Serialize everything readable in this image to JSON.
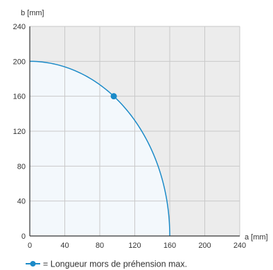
{
  "chart_data": {
    "type": "line",
    "xlabel": "a [mm]",
    "ylabel": "b [mm]",
    "xlim": [
      0,
      240
    ],
    "ylim": [
      0,
      240
    ],
    "xticks": [
      0,
      40,
      80,
      120,
      160,
      200,
      240
    ],
    "yticks": [
      0,
      40,
      80,
      120,
      160,
      200,
      240
    ],
    "grid": true,
    "series": [
      {
        "curve": "quarter-ellipse",
        "semi_axis_a": 160,
        "semi_axis_b": 200,
        "fill_under": true
      }
    ],
    "marker_point": {
      "x": 96,
      "y": 160
    },
    "legend": {
      "text": "= Longueur mors de préhension max."
    },
    "colors": {
      "line": "#1a8ac8",
      "fill": "#f3f8fc",
      "outside": "#ececec",
      "grid": "#c9c9c9",
      "axis": "#333333"
    }
  }
}
